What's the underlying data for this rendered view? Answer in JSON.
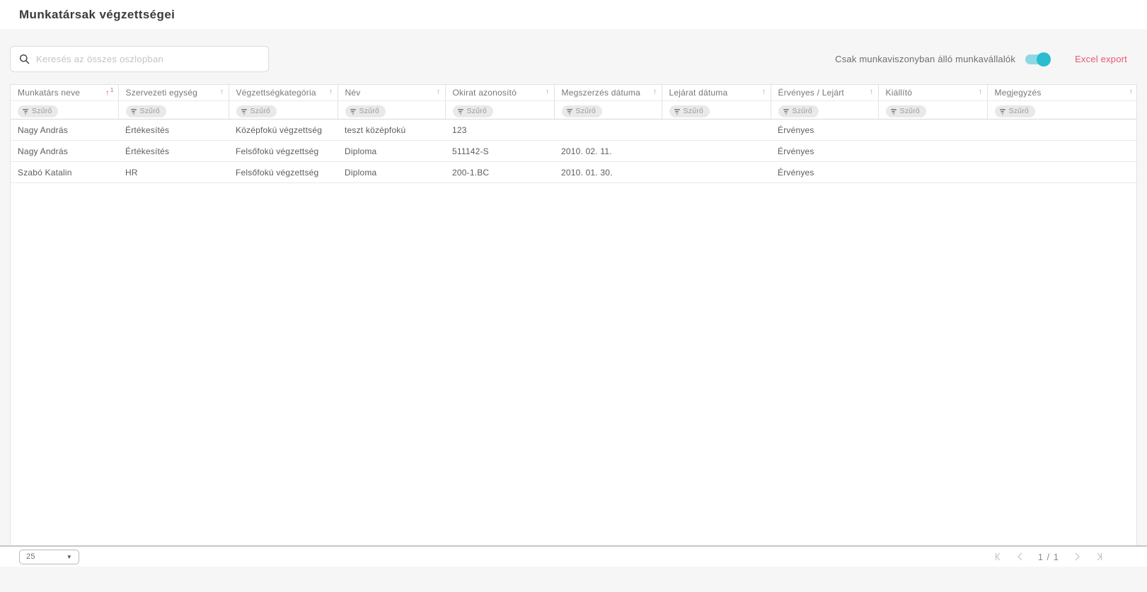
{
  "page": {
    "title": "Munkatársak végzettségei"
  },
  "toolbar": {
    "search_placeholder": "Keresés az összes oszlopban",
    "toggle_label": "Csak munkaviszonyban álló munkavállalók",
    "toggle_on": true,
    "excel_export_label": "Excel export"
  },
  "table": {
    "filter_label": "Szűrő",
    "columns": [
      {
        "label": "Munkatárs neve",
        "sorted": true,
        "sort_direction": "asc",
        "sort_order": "1"
      },
      {
        "label": "Szervezeti egység",
        "sorted": false
      },
      {
        "label": "Végzettségkategória",
        "sorted": false
      },
      {
        "label": "Név",
        "sorted": false
      },
      {
        "label": "Okirat azonosító",
        "sorted": false
      },
      {
        "label": "Megszerzés dátuma",
        "sorted": false
      },
      {
        "label": "Lejárat dátuma",
        "sorted": false
      },
      {
        "label": "Érvényes / Lejárt",
        "sorted": false
      },
      {
        "label": "Kiállító",
        "sorted": false
      },
      {
        "label": "Megjegyzés",
        "sorted": false
      }
    ],
    "rows": [
      [
        "Nagy András",
        "Értékesítés",
        "Középfokú végzettség",
        "teszt középfokú",
        "123",
        "",
        "",
        "Érvényes",
        "",
        ""
      ],
      [
        "Nagy András",
        "Értékesítés",
        "Felsőfokú végzettség",
        "Diploma",
        "511142-S",
        "2010. 02. 11.",
        "",
        "Érvényes",
        "",
        ""
      ],
      [
        "Szabó Katalin",
        "HR",
        "Felsőfokú végzettség",
        "Diploma",
        "200-1.BC",
        "2010. 01. 30.",
        "",
        "Érvényes",
        "",
        ""
      ]
    ]
  },
  "pagination": {
    "page_size": "25",
    "page_indicator": "1 / 1"
  },
  "colors": {
    "accent_teal": "#2bbccf",
    "toggle_track": "#8ed8e4",
    "export_red": "#e8586f",
    "sort_active_pink": "#d65a7e"
  }
}
